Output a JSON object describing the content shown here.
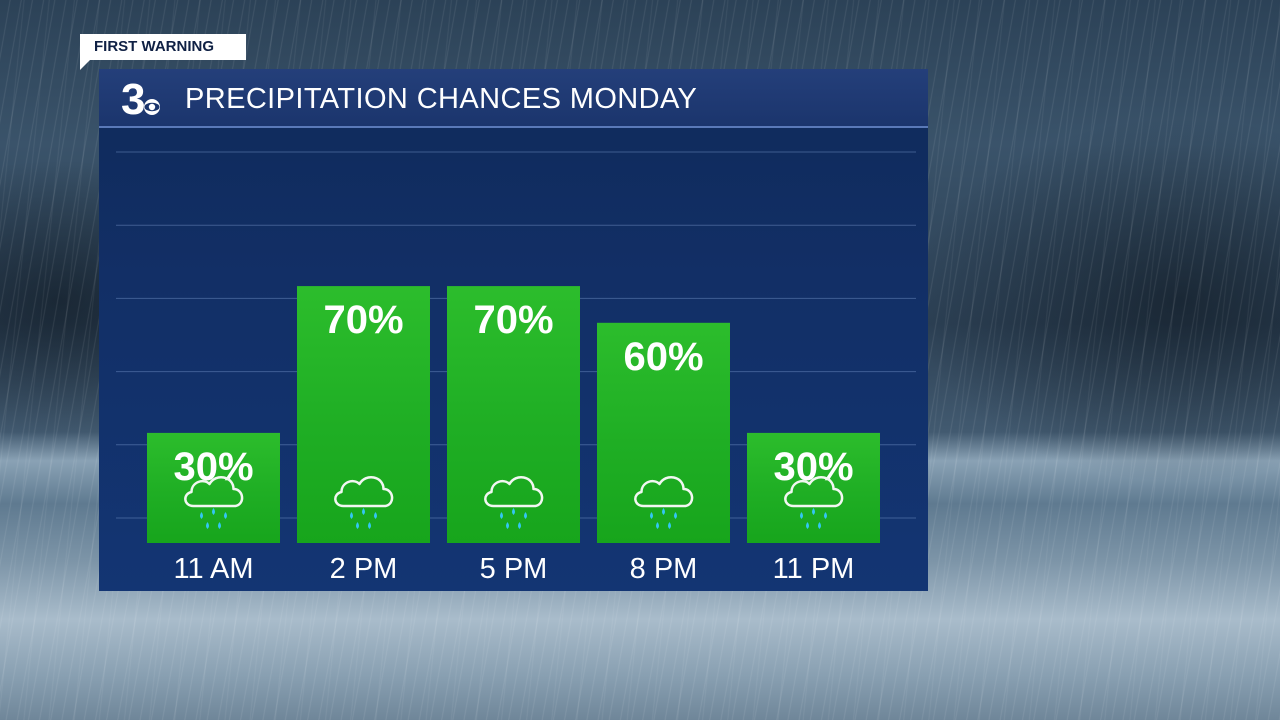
{
  "badge": {
    "text": "FIRST WARNING"
  },
  "logo": {
    "text": "3"
  },
  "header": {
    "title": "PRECIPITATION CHANCES MONDAY"
  },
  "colors": {
    "bar_green": "#1fae24",
    "panel_blue": "#133573",
    "text": "#ffffff",
    "raindrop": "#33c6f3"
  },
  "chart_data": {
    "type": "bar",
    "title": "PRECIPITATION CHANCES MONDAY",
    "categories": [
      "11 AM",
      "2 PM",
      "5 PM",
      "8 PM",
      "11 PM"
    ],
    "values": [
      30,
      70,
      70,
      60,
      30
    ],
    "value_labels": [
      "30%",
      "70%",
      "70%",
      "60%",
      "30%"
    ],
    "ylim": [
      0,
      100
    ],
    "grid": true,
    "legend": "none",
    "icon": "rain-cloud-icon"
  }
}
